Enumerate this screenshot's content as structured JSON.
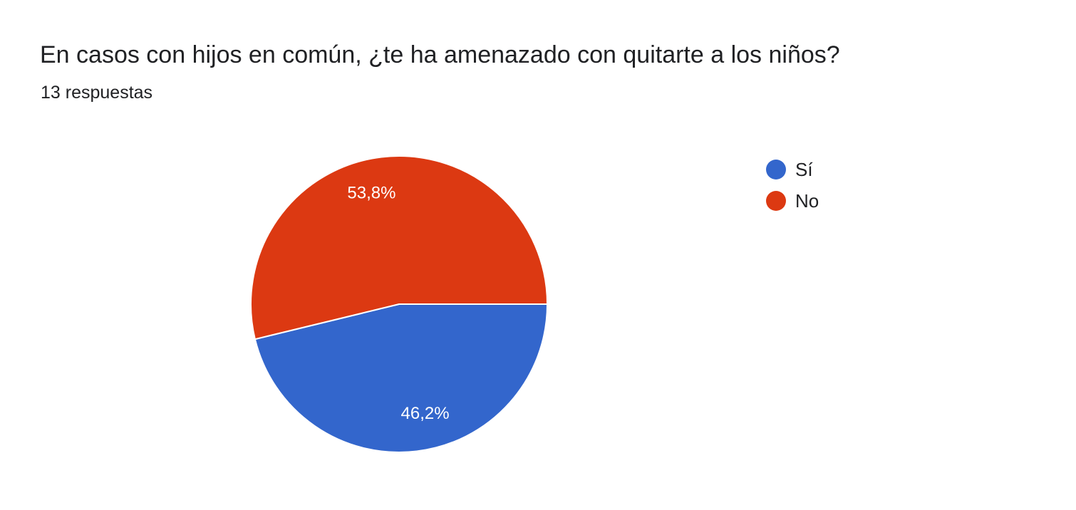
{
  "header": {
    "title": "En casos con hijos en común, ¿te ha amenazado con quitarte a los niños?",
    "subtitle": "13 respuestas"
  },
  "chart_data": {
    "type": "pie",
    "title": "En casos con hijos en común, ¿te ha amenazado con quitarte a los niños?",
    "subtitle": "13 respuestas",
    "categories": [
      "Sí",
      "No"
    ],
    "values": [
      46.2,
      53.8
    ],
    "data_labels": [
      "46,2%",
      "53,8%"
    ],
    "colors": [
      "#3366cc",
      "#dc3912"
    ],
    "legend_position": "right"
  }
}
